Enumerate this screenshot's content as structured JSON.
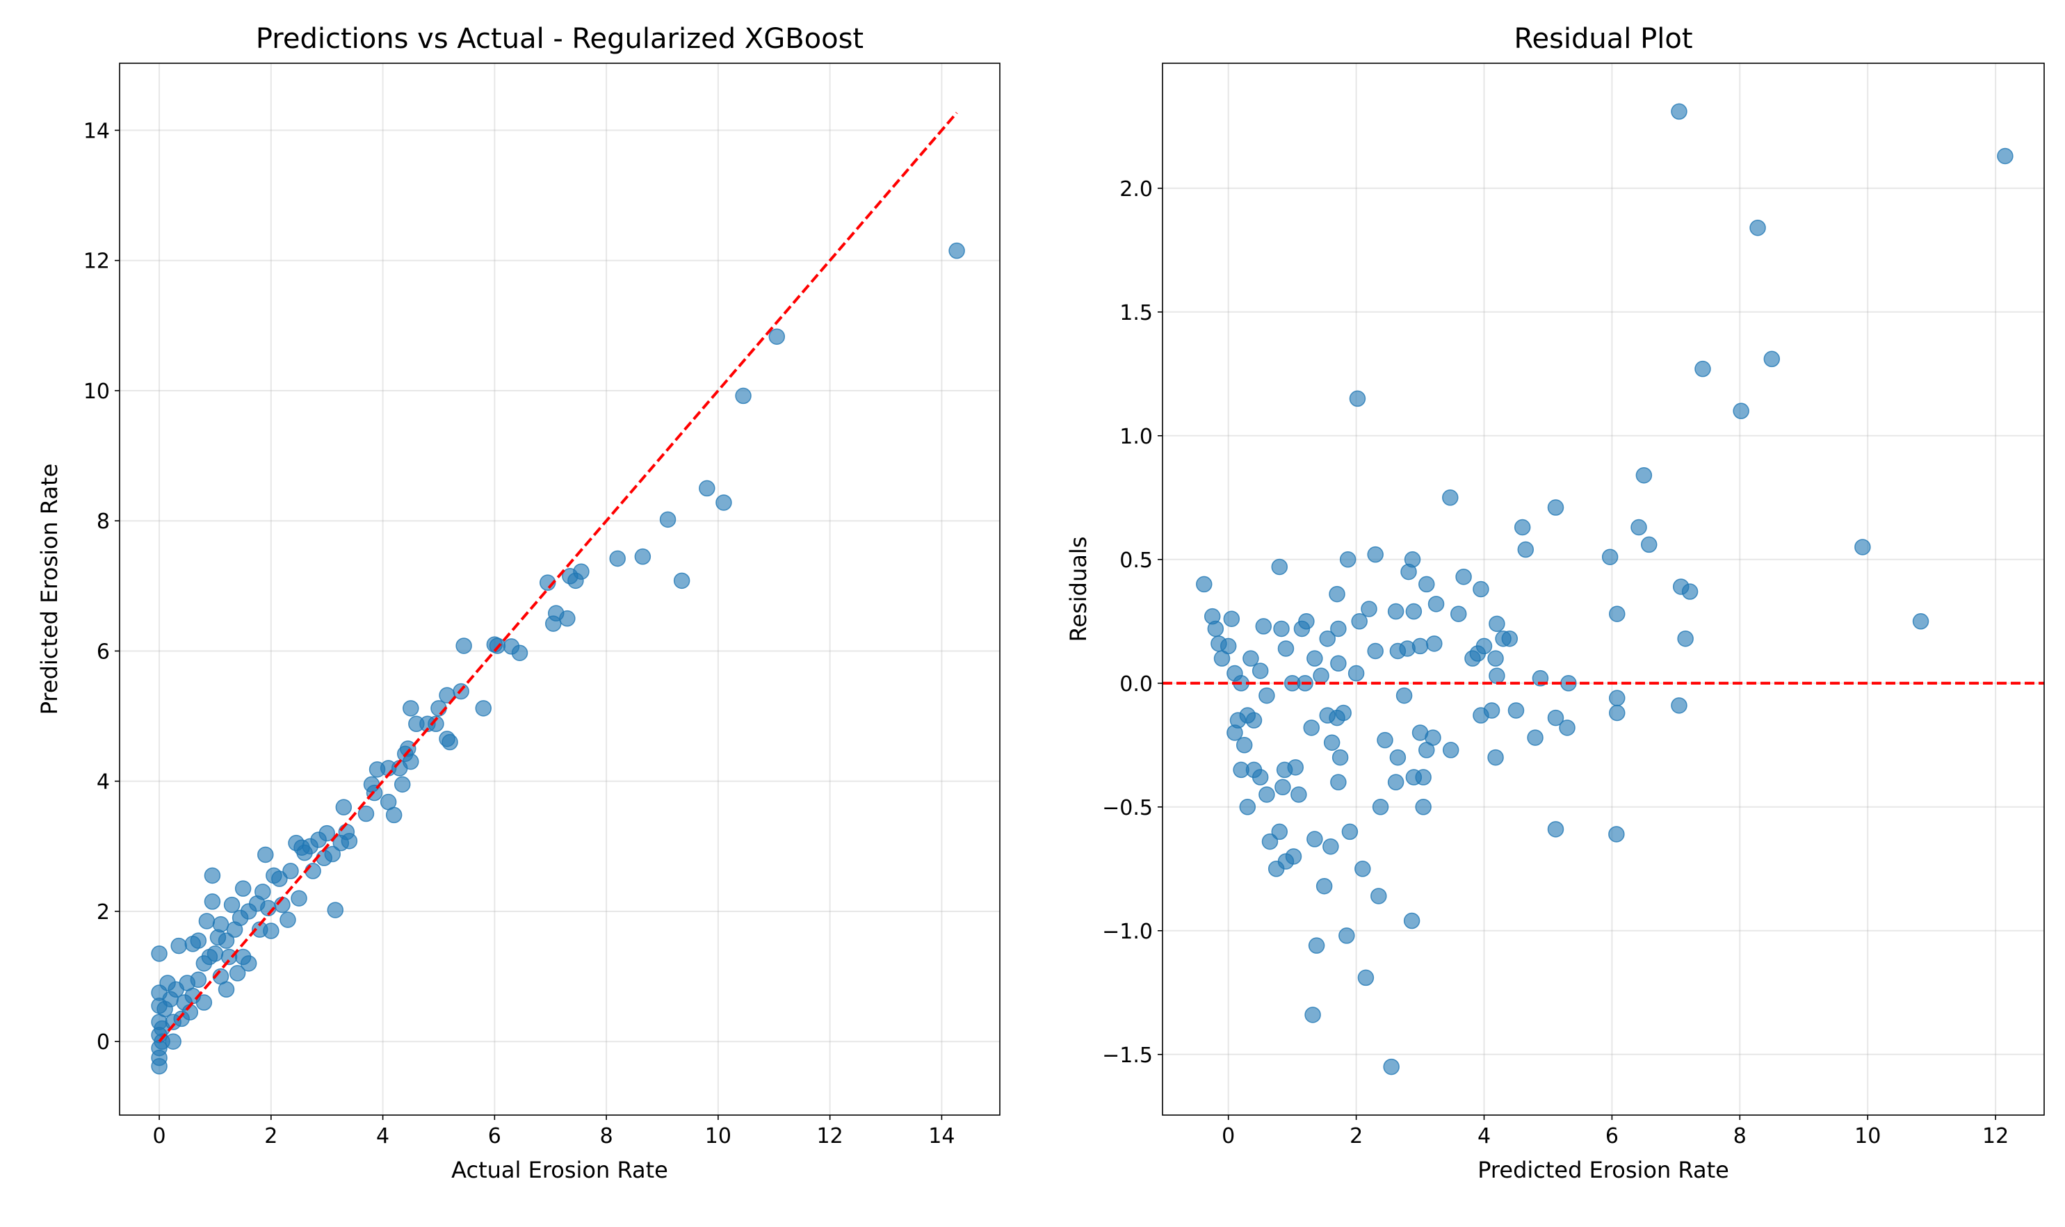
{
  "chart_data": [
    {
      "type": "scatter",
      "title": "Predictions vs Actual - Regularized XGBoost",
      "x_label": "Actual Erosion Rate",
      "y_label": "Predicted Erosion Rate",
      "color": "#1f77b4",
      "grid": true,
      "xlim": [
        -0.71,
        15.04
      ],
      "ylim": [
        -1.13,
        15.03
      ],
      "xticks": [
        0,
        2,
        4,
        6,
        8,
        10,
        12,
        14
      ],
      "yticks": [
        0,
        2,
        4,
        6,
        8,
        10,
        12,
        14
      ],
      "reference_line": {
        "x": [
          0,
          14.27
        ],
        "y": [
          0,
          14.27
        ],
        "color": "#ff0000"
      },
      "x": [
        14.27,
        11.05,
        10.45,
        9.8,
        10.1,
        9.1,
        9.35,
        8.65,
        8.2,
        7.55,
        7.45,
        7.35,
        6.95,
        7.05,
        7.1,
        7.3,
        6.45,
        6.3,
        6.0,
        6.05,
        5.45,
        5.4,
        5.15,
        5.8,
        5.0,
        5.2,
        5.15,
        4.95,
        4.5,
        4.6,
        4.8,
        4.45,
        4.4,
        4.5,
        4.3,
        4.1,
        3.9,
        4.35,
        4.1,
        4.2,
        3.85,
        3.8,
        3.7,
        3.35,
        3.3,
        3.25,
        3.1,
        3.4,
        3.15,
        2.95,
        3.0,
        2.85,
        2.7,
        2.55,
        2.45,
        2.35,
        2.75,
        2.6,
        2.3,
        2.5,
        2.15,
        2.2,
        2.05,
        1.9,
        1.95,
        1.75,
        1.85,
        2.0,
        1.8,
        1.6,
        1.5,
        1.45,
        1.35,
        1.3,
        1.2,
        1.1,
        1.05,
        0.95,
        0.95,
        0.85,
        0.7,
        0.9,
        1.2,
        1.5,
        1.6,
        1.4,
        1.0,
        0.8,
        0.6,
        0.35,
        0.0,
        0.8,
        0.7,
        0.5,
        0.4,
        0.3,
        0.2,
        0.15,
        0.1,
        0.05,
        0.0,
        0.0,
        0.0,
        0.0,
        0.0,
        0.0,
        0.0,
        0.05,
        0.25,
        0.55,
        0.6,
        0.45,
        0.25,
        1.1,
        1.25
      ],
      "y": [
        12.15,
        10.83,
        9.92,
        8.5,
        8.28,
        8.02,
        7.08,
        7.45,
        7.42,
        7.22,
        7.08,
        7.15,
        7.05,
        6.42,
        6.58,
        6.5,
        5.97,
        6.07,
        6.1,
        6.08,
        6.08,
        5.38,
        5.32,
        5.12,
        5.12,
        4.6,
        4.65,
        4.88,
        5.12,
        4.88,
        4.88,
        4.5,
        4.42,
        4.3,
        4.2,
        4.2,
        4.18,
        3.95,
        3.68,
        3.48,
        3.82,
        3.95,
        3.5,
        3.22,
        3.6,
        3.05,
        2.88,
        3.08,
        2.02,
        2.82,
        3.2,
        3.1,
        3.0,
        2.98,
        3.05,
        2.62,
        2.62,
        2.9,
        1.87,
        2.2,
        2.5,
        2.1,
        2.55,
        2.87,
        2.05,
        2.12,
        2.3,
        1.7,
        1.72,
        2.0,
        2.35,
        1.9,
        1.72,
        2.1,
        1.55,
        1.8,
        1.6,
        2.55,
        2.15,
        1.85,
        1.55,
        1.3,
        0.8,
        1.3,
        1.2,
        1.05,
        1.35,
        1.2,
        1.5,
        1.47,
        1.35,
        0.6,
        0.95,
        0.9,
        0.35,
        0.8,
        0.65,
        0.9,
        0.5,
        0.2,
        0.75,
        0.55,
        0.3,
        0.1,
        -0.1,
        -0.38,
        -0.25,
        0.0,
        0.0,
        0.45,
        0.7,
        0.6,
        0.3,
        1.0,
        1.3
      ]
    },
    {
      "type": "scatter",
      "title": "Residual Plot",
      "x_label": "Predicted Erosion Rate",
      "y_label": "Residuals",
      "color": "#1f77b4",
      "grid": true,
      "xlim": [
        -1.03,
        12.76
      ],
      "ylim": [
        -1.745,
        2.505
      ],
      "xticks": [
        0,
        2,
        4,
        6,
        8,
        10,
        12
      ],
      "yticks": [
        {
          "value": -1.5,
          "label": "−1.5"
        },
        {
          "value": -1.0,
          "label": "−1.0"
        },
        {
          "value": -0.5,
          "label": "−0.5"
        },
        {
          "value": 0,
          "label": "0.0"
        },
        0.5,
        {
          "value": 1.0,
          "label": "1.0"
        },
        1.5,
        {
          "value": 2.0,
          "label": "2.0"
        }
      ],
      "reference_line": {
        "y": 0,
        "color": "#ff0000"
      },
      "x": [
        7.05,
        12.15,
        8.28,
        8.5,
        7.42,
        2.02,
        8.02,
        9.92,
        10.83,
        7.08,
        7.22,
        7.15,
        7.05,
        6.5,
        6.42,
        6.58,
        5.97,
        6.08,
        6.08,
        6.08,
        6.07,
        5.12,
        5.12,
        4.6,
        4.65,
        5.32,
        5.12,
        5.3,
        4.88,
        4.8,
        3.47,
        3.68,
        3.95,
        3.48,
        4.2,
        4.3,
        4.4,
        4.18,
        4.18,
        4.0,
        3.9,
        3.82,
        3.95,
        4.12,
        4.5,
        4.2,
        3.6,
        3.25,
        3.1,
        3.0,
        3.05,
        3.2,
        3.1,
        3.22,
        3.05,
        2.9,
        2.87,
        2.88,
        2.82,
        2.9,
        3.0,
        2.8,
        2.62,
        2.65,
        2.75,
        2.65,
        2.45,
        2.62,
        2.38,
        2.35,
        2.55,
        2.3,
        2.2,
        2.05,
        2.1,
        2.15,
        2.0,
        1.87,
        1.9,
        1.85,
        2.3,
        1.7,
        1.72,
        1.72,
        1.7,
        1.8,
        1.55,
        1.62,
        1.75,
        1.72,
        1.6,
        1.5,
        1.35,
        1.38,
        1.32,
        1.3,
        1.45,
        1.55,
        1.35,
        1.22,
        1.15,
        1.0,
        1.05,
        1.2,
        1.1,
        1.02,
        0.9,
        0.8,
        0.83,
        0.9,
        0.75,
        0.65,
        0.8,
        0.85,
        0.88,
        0.6,
        0.55,
        0.5,
        0.5,
        0.4,
        0.3,
        0.35,
        0.2,
        0.15,
        0.1,
        0.05,
        0.0,
        -0.1,
        -0.25,
        -0.38,
        -0.2,
        -0.15,
        0.25,
        0.3,
        0.2,
        0.1,
        0.4,
        0.6
      ],
      "y": [
        2.31,
        2.13,
        1.84,
        1.31,
        1.27,
        1.15,
        1.1,
        0.55,
        0.25,
        0.39,
        0.37,
        0.18,
        -0.09,
        0.84,
        0.63,
        0.56,
        0.51,
        0.28,
        -0.06,
        -0.12,
        -0.61,
        -0.59,
        0.71,
        0.63,
        0.54,
        0.0,
        -0.14,
        -0.18,
        0.02,
        -0.22,
        0.75,
        0.43,
        0.38,
        -0.27,
        0.24,
        0.18,
        0.18,
        0.1,
        -0.3,
        0.15,
        0.12,
        0.1,
        -0.13,
        -0.11,
        -0.11,
        0.03,
        0.28,
        0.32,
        0.4,
        -0.2,
        -0.5,
        -0.22,
        -0.27,
        0.16,
        -0.38,
        -0.38,
        -0.96,
        0.5,
        0.45,
        0.29,
        0.15,
        0.14,
        0.29,
        0.13,
        -0.05,
        -0.3,
        -0.23,
        -0.4,
        -0.5,
        -0.86,
        -1.55,
        0.52,
        0.3,
        0.25,
        -0.75,
        -1.19,
        0.04,
        0.5,
        -0.6,
        -1.02,
        0.13,
        0.36,
        0.22,
        0.08,
        -0.14,
        -0.12,
        -0.13,
        -0.24,
        -0.3,
        -0.4,
        -0.66,
        -0.82,
        -0.63,
        -1.06,
        -1.34,
        -0.18,
        0.03,
        0.18,
        0.1,
        0.25,
        0.22,
        0.0,
        -0.34,
        0.0,
        -0.45,
        -0.7,
        -0.72,
        0.47,
        0.22,
        0.14,
        -0.75,
        -0.64,
        -0.6,
        -0.42,
        -0.35,
        -0.45,
        0.23,
        0.05,
        -0.38,
        -0.35,
        -0.13,
        0.1,
        0.0,
        -0.15,
        0.04,
        0.26,
        0.15,
        0.1,
        0.27,
        0.4,
        0.22,
        0.16,
        -0.25,
        -0.5,
        -0.35,
        -0.2,
        -0.15,
        -0.05
      ]
    }
  ]
}
